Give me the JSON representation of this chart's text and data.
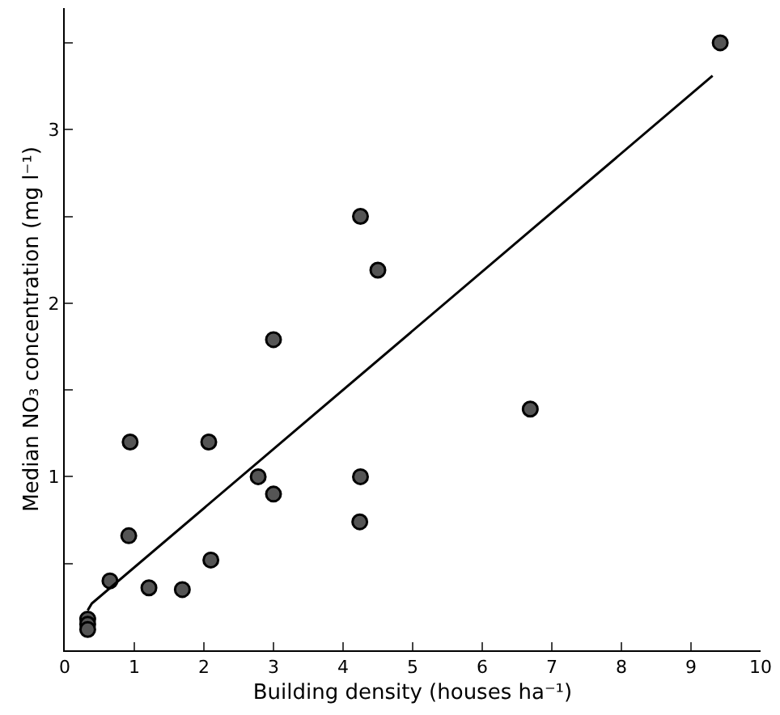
{
  "chart_data": {
    "type": "scatter",
    "xlabel": "Building density (houses ha⁻¹)",
    "ylabel": "Median NO₃ concentration (mg l⁻¹)",
    "xlim": [
      0,
      10
    ],
    "xticks": [
      0,
      1,
      2,
      3,
      4,
      5,
      6,
      7,
      8,
      9,
      10
    ],
    "ylim": [
      0,
      3.7
    ],
    "yticks": [
      {
        "value": 0.5,
        "label": null
      },
      1,
      {
        "value": 1.5,
        "label": null
      },
      2,
      {
        "value": 2.5,
        "label": null
      },
      3,
      {
        "value": 3.5,
        "label": null
      }
    ],
    "series": [
      {
        "color": "#555555",
        "marker": "circle",
        "x": [
          0.33,
          0.33,
          0.33,
          0.65,
          0.94,
          0.92,
          1.21,
          1.69,
          2.07,
          2.1,
          2.78,
          3.0,
          3.0,
          4.25,
          4.24,
          4.25,
          4.5,
          6.69,
          9.42
        ],
        "values": [
          0.18,
          0.15,
          0.12,
          0.4,
          1.2,
          0.66,
          0.36,
          0.35,
          1.2,
          0.52,
          1.0,
          0.9,
          1.79,
          1.0,
          0.74,
          2.5,
          2.19,
          1.39,
          3.5
        ]
      },
      {
        "type": "line",
        "color": "#000000",
        "line_style": "solid",
        "x": [
          0.33,
          0.39,
          9.31
        ],
        "values": [
          0.23,
          0.27,
          3.31
        ]
      }
    ]
  }
}
